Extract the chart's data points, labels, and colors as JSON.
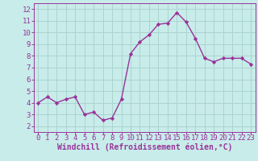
{
  "x": [
    0,
    1,
    2,
    3,
    4,
    5,
    6,
    7,
    8,
    9,
    10,
    11,
    12,
    13,
    14,
    15,
    16,
    17,
    18,
    19,
    20,
    21,
    22,
    23
  ],
  "y": [
    4.0,
    4.5,
    4.0,
    4.3,
    4.5,
    3.0,
    3.2,
    2.5,
    2.7,
    4.3,
    8.2,
    9.2,
    9.8,
    10.7,
    10.8,
    11.7,
    10.9,
    9.5,
    7.8,
    7.5,
    7.8,
    7.8,
    7.8,
    7.3
  ],
  "line_color": "#993399",
  "marker_color": "#993399",
  "bg_color": "#c8ecea",
  "grid_color": "#aad4d0",
  "xlabel": "Windchill (Refroidissement éolien,°C)",
  "xlim": [
    -0.5,
    23.5
  ],
  "ylim": [
    1.5,
    12.5
  ],
  "yticks": [
    2,
    3,
    4,
    5,
    6,
    7,
    8,
    9,
    10,
    11,
    12
  ],
  "xticks": [
    0,
    1,
    2,
    3,
    4,
    5,
    6,
    7,
    8,
    9,
    10,
    11,
    12,
    13,
    14,
    15,
    16,
    17,
    18,
    19,
    20,
    21,
    22,
    23
  ],
  "tick_label_color": "#993399",
  "axis_label_color": "#993399",
  "font_size_tick": 6.5,
  "font_size_xlabel": 7.0
}
